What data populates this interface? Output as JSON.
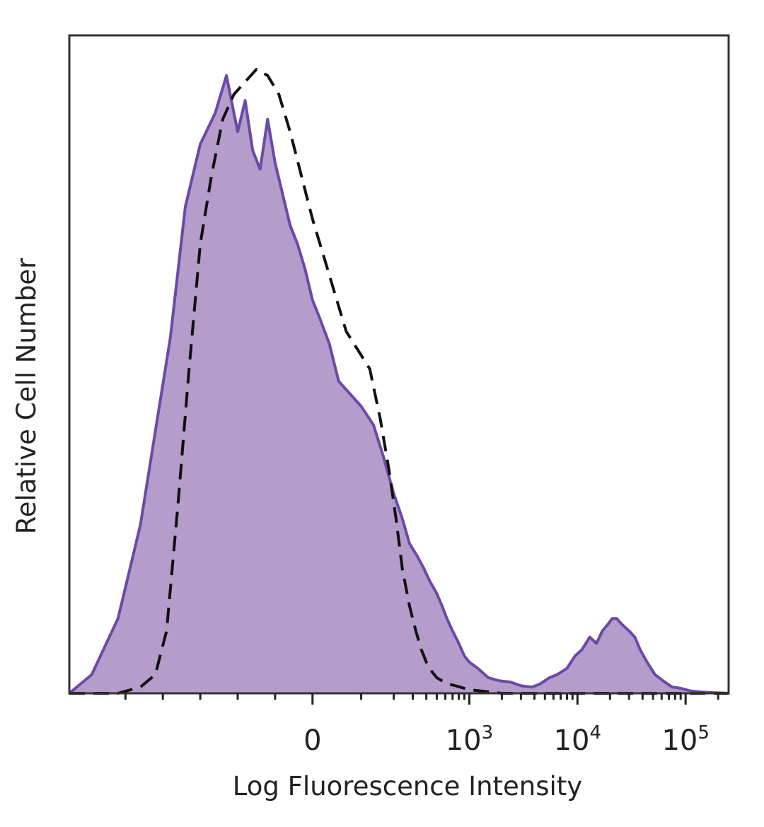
{
  "chart_data": {
    "type": "area",
    "xlabel": "Log Fluorescence Intensity",
    "ylabel": "Relative Cell Number",
    "x_scale": "biexponential",
    "xlim": [
      -650,
      250000
    ],
    "ylim": [
      0,
      1
    ],
    "grid": false,
    "legend": "none",
    "x_ticks": [
      {
        "value": 0,
        "base": "0",
        "exp": ""
      },
      {
        "value": 1000,
        "base": "10",
        "exp": "3"
      },
      {
        "value": 10000,
        "base": "10",
        "exp": "4"
      },
      {
        "value": 100000,
        "base": "10",
        "exp": "5"
      }
    ],
    "series": [
      {
        "style": "filled",
        "line_color": "#6a4aa8",
        "fill_color": "#b49ccb",
        "x": [
          -650,
          -590,
          -520,
          -460,
          -420,
          -380,
          -340,
          -300,
          -260,
          -230,
          -200,
          -180,
          -160,
          -140,
          -120,
          -100,
          -80,
          -60,
          -40,
          -20,
          0,
          20,
          45,
          70,
          100,
          130,
          160,
          200,
          240,
          280,
          330,
          380,
          430,
          500,
          560,
          620,
          700,
          800,
          900,
          1000,
          1200,
          1500,
          1900,
          2400,
          3000,
          3800,
          4500,
          5500,
          6500,
          8000,
          9500,
          11000,
          13000,
          15000,
          17000,
          19000,
          21000,
          23000,
          26000,
          30000,
          34000,
          38000,
          44000,
          52000,
          62000,
          75000,
          90000,
          110000,
          140000,
          180000,
          250000
        ],
        "y": [
          0.0,
          0.03,
          0.12,
          0.27,
          0.42,
          0.57,
          0.78,
          0.88,
          0.93,
          0.99,
          0.9,
          0.95,
          0.87,
          0.84,
          0.92,
          0.85,
          0.8,
          0.75,
          0.72,
          0.68,
          0.63,
          0.6,
          0.56,
          0.5,
          0.46,
          0.43,
          0.38,
          0.32,
          0.28,
          0.24,
          0.22,
          0.2,
          0.18,
          0.16,
          0.14,
          0.12,
          0.1,
          0.08,
          0.06,
          0.05,
          0.04,
          0.025,
          0.02,
          0.018,
          0.012,
          0.01,
          0.015,
          0.025,
          0.03,
          0.04,
          0.06,
          0.07,
          0.09,
          0.08,
          0.1,
          0.11,
          0.12,
          0.12,
          0.11,
          0.1,
          0.09,
          0.07,
          0.05,
          0.03,
          0.02,
          0.01,
          0.008,
          0.004,
          0.002,
          0.001,
          0.0
        ]
      },
      {
        "style": "dashed",
        "line_color": "#111111",
        "x": [
          -650,
          -520,
          -460,
          -420,
          -390,
          -360,
          -330,
          -300,
          -270,
          -240,
          -210,
          -180,
          -150,
          -120,
          -90,
          -60,
          -30,
          0,
          30,
          60,
          90,
          120,
          150,
          180,
          210,
          240,
          280,
          320,
          360,
          400,
          450,
          500,
          560,
          640,
          750,
          900,
          1100,
          1400,
          2000,
          250000
        ],
        "y": [
          0.0,
          0.0,
          0.01,
          0.03,
          0.1,
          0.3,
          0.52,
          0.72,
          0.83,
          0.92,
          0.96,
          0.98,
          1.0,
          0.99,
          0.96,
          0.9,
          0.83,
          0.76,
          0.7,
          0.64,
          0.58,
          0.52,
          0.44,
          0.36,
          0.28,
          0.2,
          0.14,
          0.1,
          0.07,
          0.05,
          0.035,
          0.025,
          0.02,
          0.015,
          0.012,
          0.008,
          0.005,
          0.003,
          0.0,
          0.0
        ]
      }
    ]
  }
}
